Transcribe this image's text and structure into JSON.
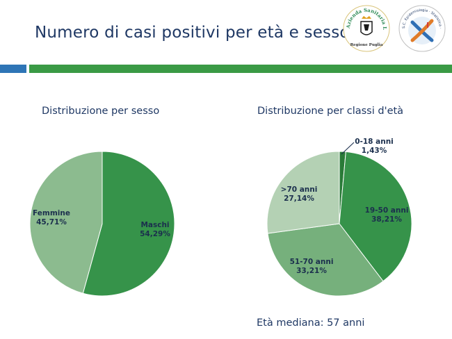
{
  "slide": {
    "title": "Numero di casi positivi  per età e sesso",
    "median_text": "Età mediana: 57 anni"
  },
  "logos": {
    "asl": {
      "ring_text": "Azienda Sanitaria Locale Taranto",
      "region": "Regione Puglia"
    },
    "epi": {
      "ring_text": "S.C. Epidemiologia · Statistica · ASL Taranto"
    }
  },
  "colors": {
    "title": "#1f3864",
    "accent_blue": "#2e75b6",
    "accent_green": "#3a9a45"
  },
  "chart_data": [
    {
      "type": "pie",
      "title": "Distribuzione per sesso",
      "slices": [
        {
          "label": "Maschi",
          "value": 54.29,
          "value_label": "54,29%",
          "color": "#36934a"
        },
        {
          "label": "Femmine",
          "value": 45.71,
          "value_label": "45,71%",
          "color": "#8cbb8f"
        }
      ]
    },
    {
      "type": "pie",
      "title": "Distribuzione per classi d'età",
      "slices": [
        {
          "label": "0-18 anni",
          "value": 1.43,
          "value_label": "1,43%",
          "color": "#2a7b38"
        },
        {
          "label": "19-50 anni",
          "value": 38.21,
          "value_label": "38,21%",
          "color": "#36934a"
        },
        {
          "label": "51-70 anni",
          "value": 33.21,
          "value_label": "33,21%",
          "color": "#76b07c"
        },
        {
          "label": ">70 anni",
          "value": 27.14,
          "value_label": "27,14%",
          "color": "#b4d1b4"
        }
      ]
    }
  ]
}
